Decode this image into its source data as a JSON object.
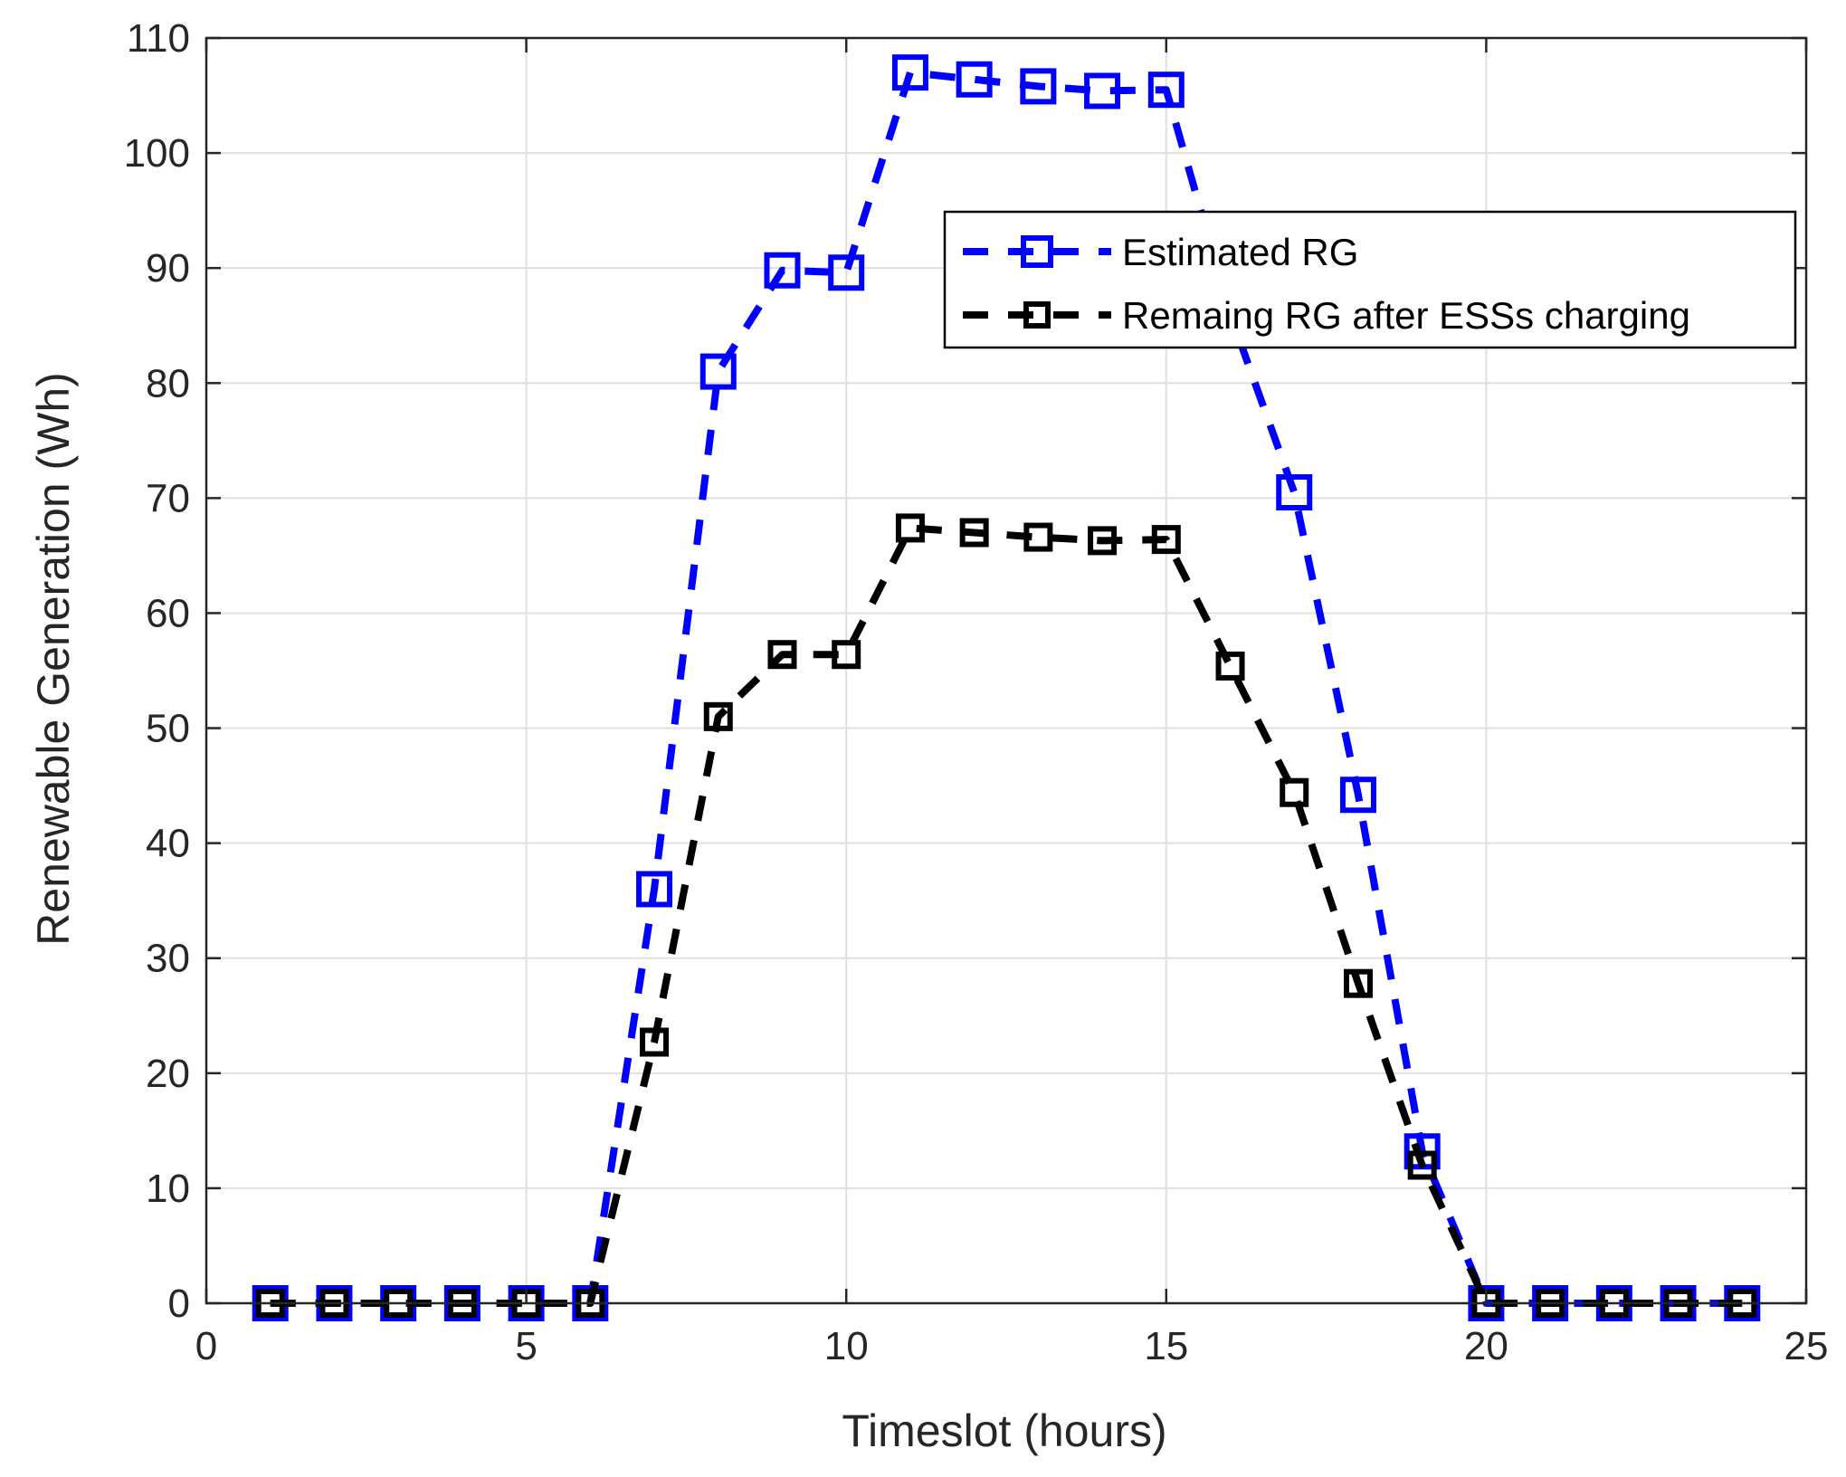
{
  "chart_data": {
    "type": "line",
    "title": "",
    "xlabel": "Timeslot (hours)",
    "ylabel": "Renewable Generation (Wh)",
    "xlim": [
      0,
      25
    ],
    "ylim": [
      0,
      110
    ],
    "xticks": [
      0,
      5,
      10,
      15,
      20,
      25
    ],
    "yticks": [
      0,
      10,
      20,
      30,
      40,
      50,
      60,
      70,
      80,
      90,
      100,
      110
    ],
    "grid": true,
    "legend_position": "top-right",
    "x": [
      1,
      2,
      3,
      4,
      5,
      6,
      7,
      8,
      9,
      10,
      11,
      12,
      13,
      14,
      15,
      16,
      17,
      18,
      19,
      20,
      21,
      22,
      23,
      24
    ],
    "series": [
      {
        "name": "Estimated RG",
        "color": "#0000ff",
        "marker": "square",
        "line_style": "dashed",
        "values": [
          0,
          0,
          0,
          0,
          0,
          0,
          36,
          81,
          89.8,
          89.6,
          107,
          106.4,
          105.8,
          105.4,
          105.5,
          86,
          70.5,
          44.2,
          13.2,
          0,
          0,
          0,
          0,
          0
        ]
      },
      {
        "name": "Remaing RG after ESSs charging",
        "color": "#000000",
        "marker": "square",
        "line_style": "dashed",
        "values": [
          0,
          0,
          0,
          0,
          0,
          0,
          22.7,
          51,
          56.4,
          56.4,
          67.4,
          67,
          66.6,
          66.3,
          66.4,
          55.4,
          44.4,
          27.8,
          12,
          0,
          0,
          0,
          0,
          0
        ]
      }
    ]
  }
}
